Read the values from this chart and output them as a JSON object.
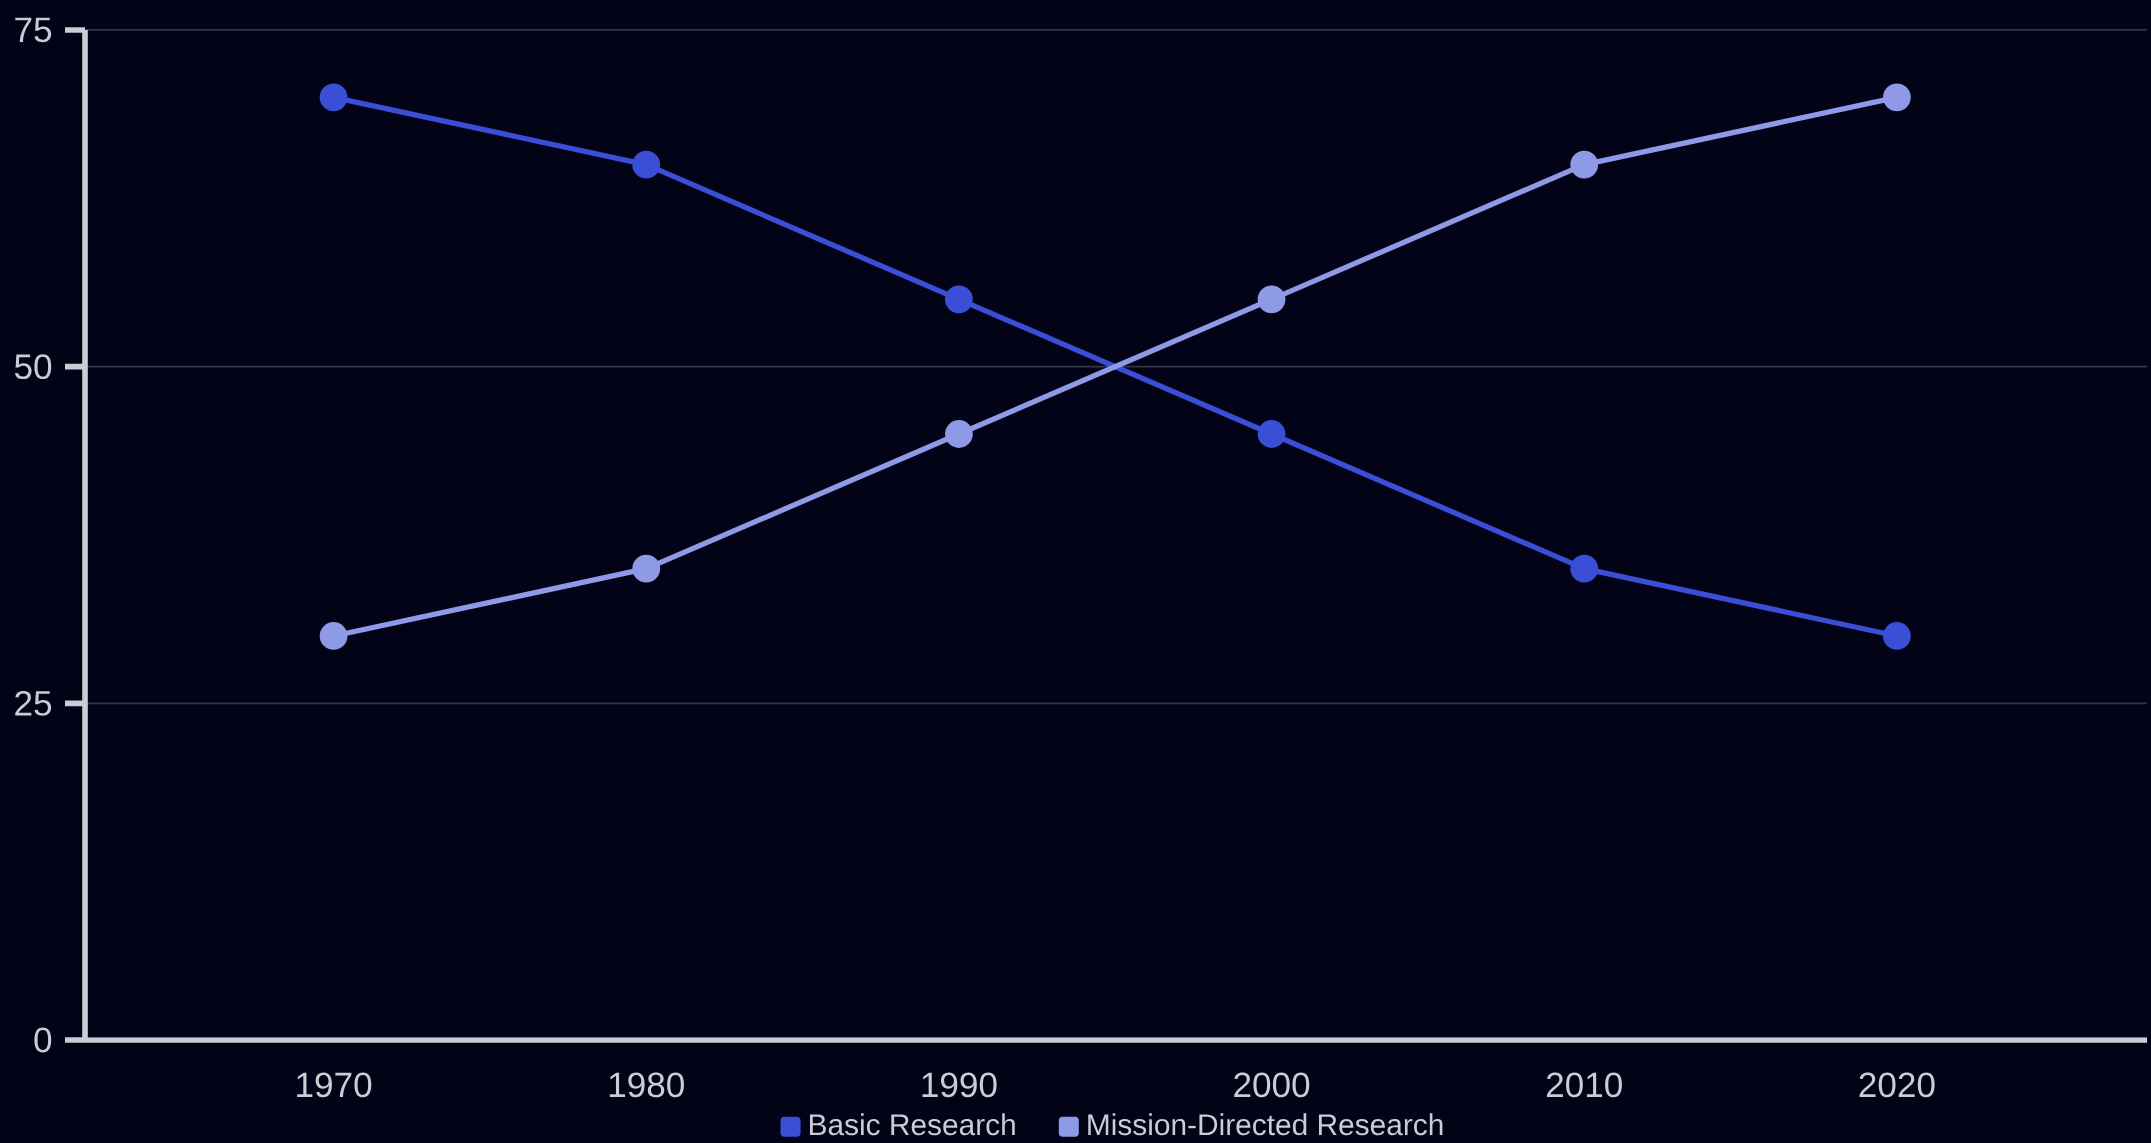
{
  "chart_data": {
    "type": "line",
    "categories": [
      "1970",
      "1980",
      "1990",
      "2000",
      "2010",
      "2020"
    ],
    "series": [
      {
        "name": "Basic Research",
        "color": "#3a4fd6",
        "values": [
          70,
          65,
          55,
          45,
          35,
          30
        ]
      },
      {
        "name": "Mission-Directed Research",
        "color": "#8f9ae6",
        "values": [
          30,
          35,
          45,
          55,
          65,
          70
        ]
      }
    ],
    "ylim": [
      0,
      75
    ],
    "yticks": [
      0,
      25,
      50,
      75
    ],
    "grid": "y",
    "legend": "bottom",
    "marker": "circle",
    "line_style": "solid"
  }
}
